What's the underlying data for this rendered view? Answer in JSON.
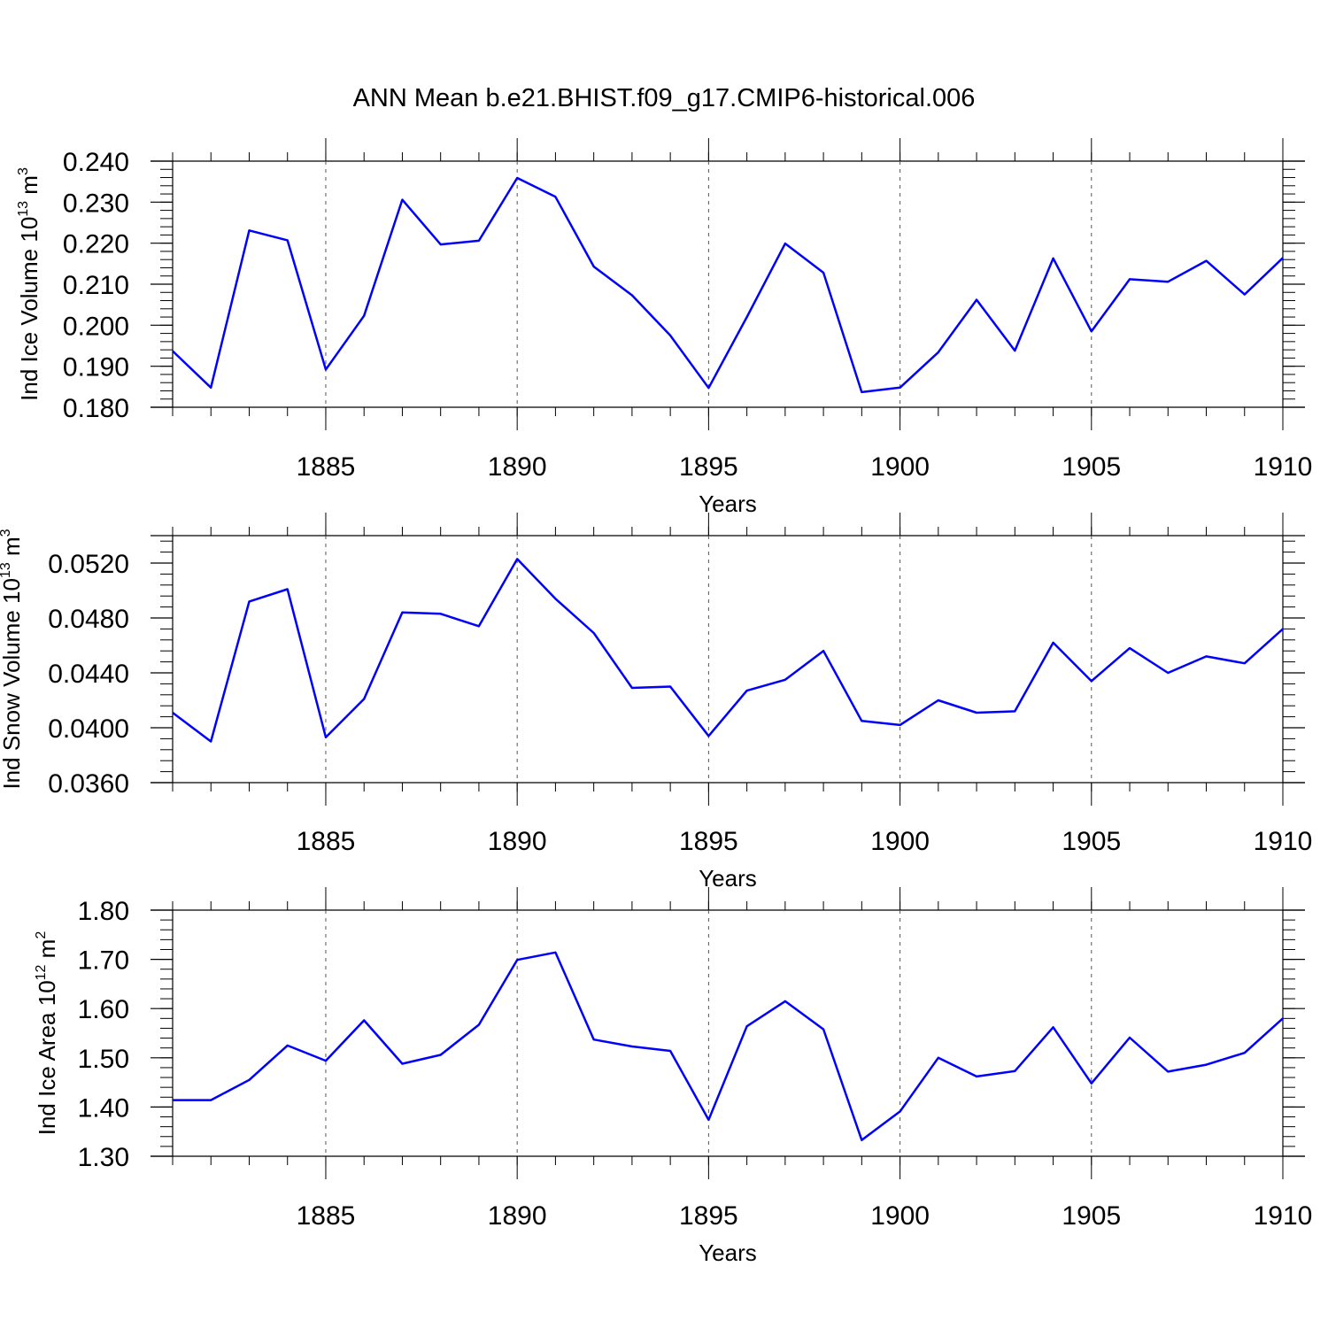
{
  "figure": {
    "title": "ANN Mean b.e21.BHIST.f09_g17.CMIP6-historical.006",
    "line_color": "#0000ff",
    "grid_color": "#555555"
  },
  "chart_data": [
    {
      "type": "line",
      "title": "ANN Mean b.e21.BHIST.f09_g17.CMIP6-historical.006",
      "xlabel": "Years",
      "ylabel_main": "Ind Ice Volume 10",
      "ylabel_exp": "13",
      "ylabel_unit": " m",
      "ylabel_unit_exp": "3",
      "xlim": [
        1881,
        1910
      ],
      "ylim": [
        0.18,
        0.24
      ],
      "yticks": [
        "0.180",
        "0.190",
        "0.200",
        "0.210",
        "0.220",
        "0.230",
        "0.240"
      ],
      "yticks_values": [
        0.18,
        0.19,
        0.2,
        0.21,
        0.22,
        0.23,
        0.24
      ],
      "xticks": [
        "1885",
        "1890",
        "1895",
        "1900",
        "1905",
        "1910"
      ],
      "xticks_values": [
        1885,
        1890,
        1895,
        1900,
        1905,
        1910
      ],
      "grid": "vertical dashed at major x ticks",
      "x": [
        1881,
        1882,
        1883,
        1884,
        1885,
        1886,
        1887,
        1888,
        1889,
        1890,
        1891,
        1892,
        1893,
        1894,
        1895,
        1896,
        1897,
        1898,
        1899,
        1900,
        1901,
        1902,
        1903,
        1904,
        1905,
        1906,
        1907,
        1908,
        1909,
        1910
      ],
      "y": [
        0.1937,
        0.1848,
        0.2231,
        0.2207,
        0.1892,
        0.2023,
        0.2306,
        0.2197,
        0.2206,
        0.2359,
        0.2313,
        0.2143,
        0.2073,
        0.1975,
        0.1847,
        0.202,
        0.2199,
        0.2128,
        0.1837,
        0.1848,
        0.1934,
        0.2062,
        0.1938,
        0.2163,
        0.1985,
        0.2112,
        0.2106,
        0.2157,
        0.2075,
        0.2164
      ]
    },
    {
      "type": "line",
      "xlabel": "Years",
      "ylabel_main": "Ind Snow Volume 10",
      "ylabel_exp": "13",
      "ylabel_unit": " m",
      "ylabel_unit_exp": "3",
      "xlim": [
        1881,
        1910
      ],
      "ylim": [
        0.036,
        0.054
      ],
      "yticks": [
        "0.0360",
        "0.0400",
        "0.0440",
        "0.0480",
        "0.0520"
      ],
      "yticks_values": [
        0.036,
        0.04,
        0.044,
        0.048,
        0.052
      ],
      "xticks": [
        "1885",
        "1890",
        "1895",
        "1900",
        "1905",
        "1910"
      ],
      "xticks_values": [
        1885,
        1890,
        1895,
        1900,
        1905,
        1910
      ],
      "grid": "vertical dashed at major x ticks",
      "x": [
        1881,
        1882,
        1883,
        1884,
        1885,
        1886,
        1887,
        1888,
        1889,
        1890,
        1891,
        1892,
        1893,
        1894,
        1895,
        1896,
        1897,
        1898,
        1899,
        1900,
        1901,
        1902,
        1903,
        1904,
        1905,
        1906,
        1907,
        1908,
        1909,
        1910
      ],
      "y": [
        0.0411,
        0.039,
        0.0492,
        0.0501,
        0.0393,
        0.0421,
        0.0484,
        0.0483,
        0.0474,
        0.0523,
        0.0494,
        0.0469,
        0.0429,
        0.043,
        0.0394,
        0.0427,
        0.0435,
        0.0456,
        0.0405,
        0.0402,
        0.042,
        0.0411,
        0.0412,
        0.0462,
        0.0434,
        0.0458,
        0.044,
        0.0452,
        0.0447,
        0.0472
      ]
    },
    {
      "type": "line",
      "xlabel": "Years",
      "ylabel_main": "Ind Ice Area 10",
      "ylabel_exp": "12",
      "ylabel_unit": " m",
      "ylabel_unit_exp": "2",
      "xlim": [
        1881,
        1910
      ],
      "ylim": [
        1.3,
        1.8
      ],
      "yticks": [
        "1.30",
        "1.40",
        "1.50",
        "1.60",
        "1.70",
        "1.80"
      ],
      "yticks_values": [
        1.3,
        1.4,
        1.5,
        1.6,
        1.7,
        1.8
      ],
      "xticks": [
        "1885",
        "1890",
        "1895",
        "1900",
        "1905",
        "1910"
      ],
      "xticks_values": [
        1885,
        1890,
        1895,
        1900,
        1905,
        1910
      ],
      "grid": "vertical dashed at major x ticks",
      "x": [
        1881,
        1882,
        1883,
        1884,
        1885,
        1886,
        1887,
        1888,
        1889,
        1890,
        1891,
        1892,
        1893,
        1894,
        1895,
        1896,
        1897,
        1898,
        1899,
        1900,
        1901,
        1902,
        1903,
        1904,
        1905,
        1906,
        1907,
        1908,
        1909,
        1910
      ],
      "y": [
        1.414,
        1.414,
        1.455,
        1.525,
        1.494,
        1.576,
        1.488,
        1.506,
        1.567,
        1.699,
        1.714,
        1.537,
        1.523,
        1.514,
        1.374,
        1.564,
        1.615,
        1.558,
        1.333,
        1.391,
        1.5,
        1.462,
        1.473,
        1.562,
        1.448,
        1.541,
        1.472,
        1.486,
        1.51,
        1.58
      ]
    }
  ]
}
